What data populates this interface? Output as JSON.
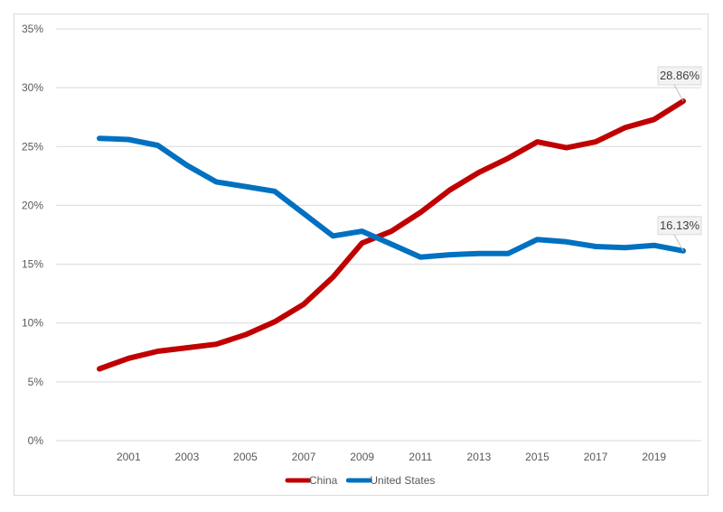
{
  "chart_data": {
    "type": "line",
    "x": [
      2000,
      2001,
      2002,
      2003,
      2004,
      2005,
      2006,
      2007,
      2008,
      2009,
      2010,
      2011,
      2012,
      2013,
      2014,
      2015,
      2016,
      2017,
      2018,
      2019,
      2020
    ],
    "x_tick_labels": [
      "2001",
      "2003",
      "2005",
      "2007",
      "2009",
      "2011",
      "2013",
      "2015",
      "2017",
      "2019"
    ],
    "y_tick_labels": [
      "0%",
      "5%",
      "10%",
      "15%",
      "20%",
      "25%",
      "30%",
      "35%"
    ],
    "ylim": [
      0,
      35
    ],
    "grid": true,
    "legend_position": "bottom",
    "series": [
      {
        "name": "China",
        "color": "#c00000",
        "values": [
          6.1,
          7.0,
          7.6,
          7.9,
          8.2,
          9.0,
          10.1,
          11.6,
          13.9,
          16.8,
          17.8,
          19.4,
          21.3,
          22.8,
          24.0,
          25.4,
          24.9,
          25.4,
          26.6,
          27.3,
          28.86
        ]
      },
      {
        "name": "United States",
        "color": "#0070c0",
        "values": [
          25.7,
          25.6,
          25.1,
          23.4,
          22.0,
          21.6,
          21.2,
          19.3,
          17.4,
          17.8,
          16.7,
          15.6,
          15.8,
          15.9,
          15.9,
          17.1,
          16.9,
          16.5,
          16.4,
          16.6,
          16.13
        ]
      }
    ],
    "annotations": [
      {
        "series": "China",
        "x": 2020,
        "label": "28.86%"
      },
      {
        "series": "United States",
        "x": 2020,
        "label": "16.13%"
      }
    ]
  }
}
